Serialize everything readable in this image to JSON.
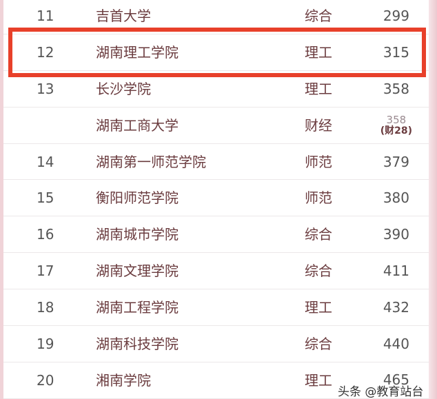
{
  "rows": [
    {
      "rank": "11",
      "name": "吉首大学",
      "type": "综合",
      "score": "299"
    },
    {
      "rank": "12",
      "name": "湖南理工学院",
      "type": "理工",
      "score": "315",
      "highlighted": true
    },
    {
      "rank": "13",
      "name": "长沙学院",
      "type": "理工",
      "score": "358"
    },
    {
      "rank": "",
      "name": "湖南工商大学",
      "type": "财经",
      "score": "358",
      "note": "(财28)"
    },
    {
      "rank": "14",
      "name": "湖南第一师范学院",
      "type": "师范",
      "score": "379"
    },
    {
      "rank": "15",
      "name": "衡阳师范学院",
      "type": "师范",
      "score": "380"
    },
    {
      "rank": "16",
      "name": "湖南城市学院",
      "type": "综合",
      "score": "390"
    },
    {
      "rank": "17",
      "name": "湖南文理学院",
      "type": "综合",
      "score": "411"
    },
    {
      "rank": "18",
      "name": "湖南工程学院",
      "type": "理工",
      "score": "432"
    },
    {
      "rank": "19",
      "name": "湖南科技学院",
      "type": "综合",
      "score": "440"
    },
    {
      "rank": "20",
      "name": "湘南学院",
      "type": "理工",
      "score": "465"
    }
  ],
  "watermark": "头条 @教育站台",
  "colors": {
    "highlight": "#e8402a",
    "border_pink": "#ecc9cf"
  }
}
